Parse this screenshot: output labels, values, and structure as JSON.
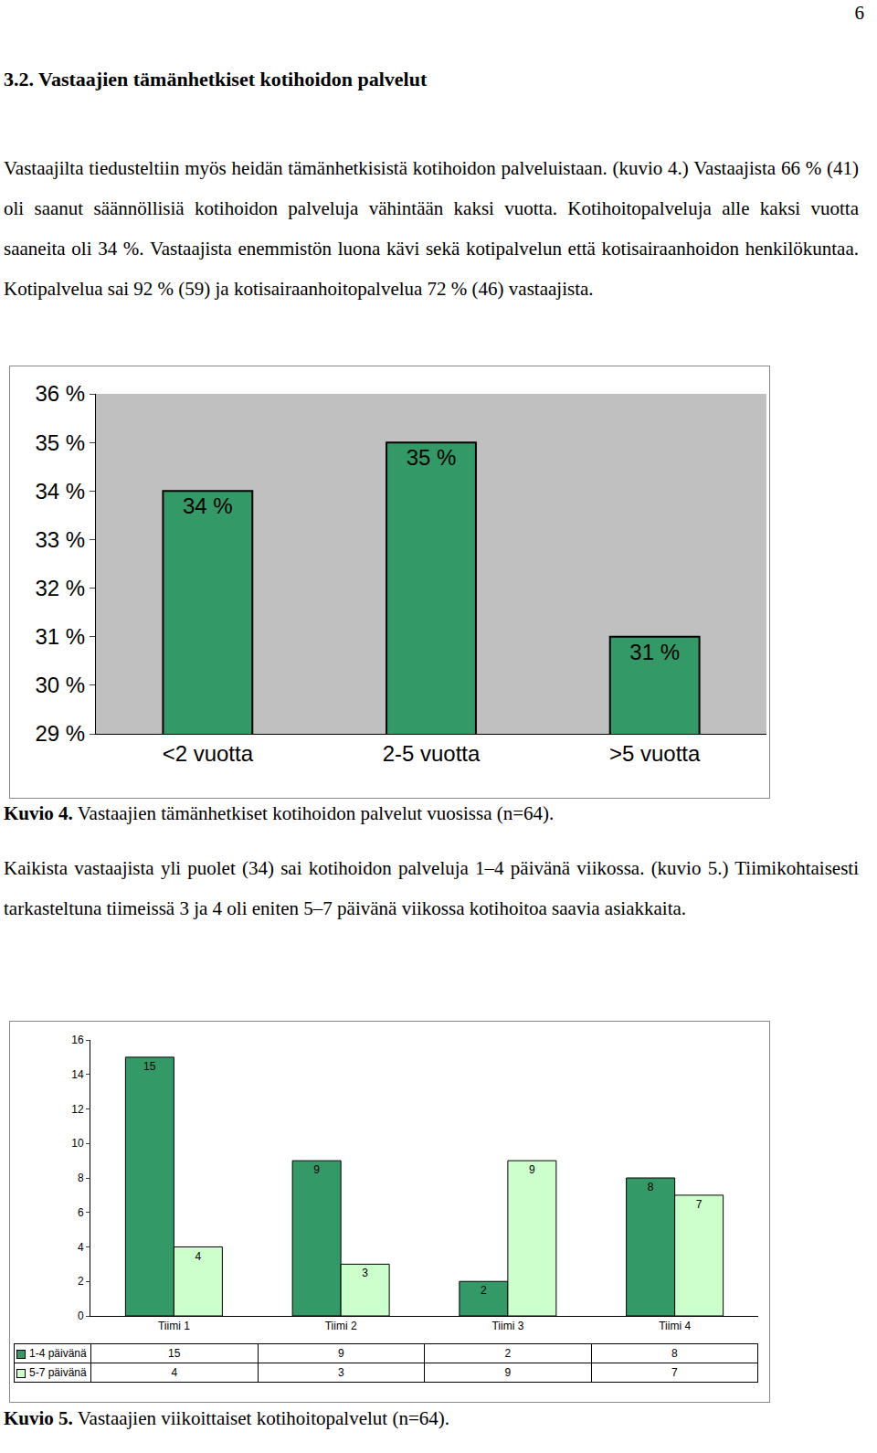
{
  "page_number": "6",
  "heading": "3.2. Vastaajien tämänhetkiset kotihoidon palvelut",
  "paragraphs": [
    "Vastaajilta tiedusteltiin myös heidän tämänhetkisistä kotihoidon palveluistaan. (kuvio 4.) Vastaajista 66 % (41) oli saanut säännöllisiä kotihoidon palveluja vähintään kaksi vuotta. Kotihoitopalveluja alle kaksi vuotta saaneita oli 34 %. Vastaajista enemmistön luona kävi sekä kotipalvelun että kotisairaanhoidon henkilökuntaa. Kotipalvelua sai 92 % (59) ja kotisairaanhoitopalvelua 72 % (46) vastaajista.",
    "Kaikista vastaajista yli puolet (34) sai kotihoidon palveluja 1–4 päivänä viikossa. (kuvio 5.) Tiimikohtaisesti tarkasteltuna tiimeissä 3 ja 4 oli eniten 5–7 päivänä viikossa kotihoitoa saavia asiakkaita."
  ],
  "chart_data": [
    {
      "type": "bar",
      "categories": [
        "<2 vuotta",
        "2-5 vuotta",
        ">5 vuotta"
      ],
      "values": [
        34,
        35,
        31
      ],
      "value_labels": [
        "34 %",
        "35 %",
        "31 %"
      ],
      "color": "#339966",
      "ylim": [
        29,
        36
      ],
      "yticks": [
        {
          "value": 29,
          "label": "29 %"
        },
        {
          "value": 30,
          "label": "30 %"
        },
        {
          "value": 31,
          "label": "31 %"
        },
        {
          "value": 32,
          "label": "32 %"
        },
        {
          "value": 33,
          "label": "33 %"
        },
        {
          "value": 34,
          "label": "34 %"
        },
        {
          "value": 35,
          "label": "35 %"
        },
        {
          "value": 36,
          "label": "36 %"
        }
      ],
      "grid": false,
      "data_labels": true,
      "caption": {
        "label": "Kuvio 4.",
        "text": "Vastaajien tämänhetkiset kotihoidon palvelut vuosissa (n=64)."
      }
    },
    {
      "type": "bar",
      "categories": [
        "Tiimi 1",
        "Tiimi 2",
        "Tiimi 3",
        "Tiimi 4"
      ],
      "series": [
        {
          "name": "1-4 päivänä",
          "color": "#339966",
          "values": [
            15,
            9,
            2,
            8
          ]
        },
        {
          "name": "5-7 päivänä",
          "color": "#ccffcc",
          "values": [
            4,
            3,
            9,
            7
          ]
        }
      ],
      "ylim": [
        0,
        16
      ],
      "yticks": [
        0,
        2,
        4,
        6,
        8,
        10,
        12,
        14,
        16
      ],
      "grid": false,
      "data_labels": true,
      "caption": {
        "label": "Kuvio 5.",
        "text": "Vastaajien viikoittaiset kotihoitopalvelut (n=64)."
      }
    }
  ]
}
